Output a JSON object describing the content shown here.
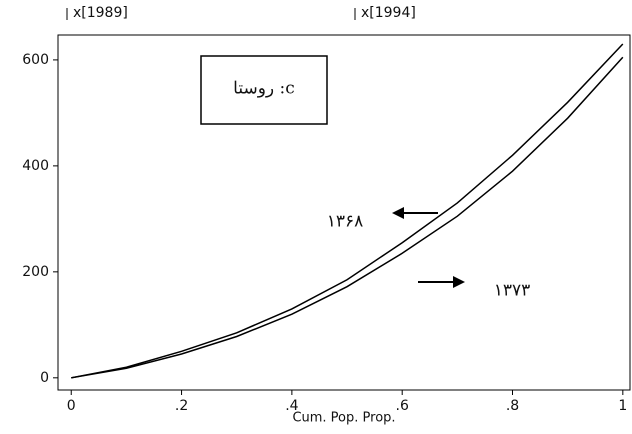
{
  "chart_data": {
    "type": "line",
    "x": [
      0,
      0.1,
      0.2,
      0.3,
      0.4,
      0.5,
      0.6,
      0.7,
      0.8,
      0.9,
      1
    ],
    "series": [
      {
        "name": "x[1989]",
        "color": "#000000",
        "values": [
          0,
          20,
          50,
          85,
          130,
          185,
          255,
          330,
          420,
          520,
          630
        ]
      },
      {
        "name": "x[1994]",
        "color": "#000000",
        "values": [
          0,
          18,
          45,
          78,
          120,
          172,
          235,
          305,
          390,
          490,
          605
        ]
      }
    ],
    "xlim": [
      -0.024,
      1.013
    ],
    "ylim": [
      -23,
      647
    ],
    "xticks": [
      0,
      {
        "value": 0.2,
        "label": ".2"
      },
      {
        "value": 0.4,
        "label": ".4"
      },
      {
        "value": 0.6,
        "label": ".6"
      },
      {
        "value": 0.8,
        "label": ".8"
      },
      1
    ],
    "yticks": [
      0,
      200,
      400,
      600
    ],
    "x_label": "Cum. Pop. Prop.",
    "annotations": [
      "c: روستا",
      "۱۳۶۸",
      "۱۳۷۳"
    ]
  }
}
